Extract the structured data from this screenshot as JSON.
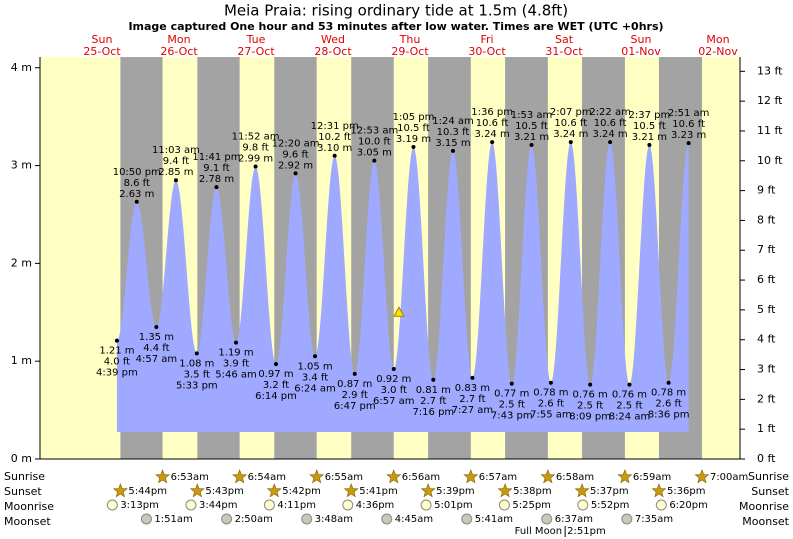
{
  "chart_data": {
    "type": "tide",
    "title": "Meia Praia: rising  ordinary tide at 1.5m (4.8ft)",
    "subtitle": "Image captured One hour and 53 minutes after low water. Times are WET (UTC +0hrs)",
    "current": {
      "height": 1.5
    },
    "ylim": [
      0,
      4.11
    ],
    "yticks": [
      {
        "value": 0,
        "label": "0 m"
      },
      {
        "value": 1,
        "label": "1 m"
      },
      {
        "value": 2,
        "label": "2 m"
      },
      {
        "value": 3,
        "label": "3 m"
      },
      {
        "value": 4,
        "label": "4 m"
      }
    ],
    "y2lim": [
      0,
      13.48
    ],
    "y2ticks": [
      {
        "value": 0,
        "label": "0 ft"
      },
      {
        "value": 1,
        "label": "1 ft"
      },
      {
        "value": 2,
        "label": "2 ft"
      },
      {
        "value": 3,
        "label": "3 ft"
      },
      {
        "value": 4,
        "label": "4 ft"
      },
      {
        "value": 5,
        "label": "5 ft"
      },
      {
        "value": 6,
        "label": "6 ft"
      },
      {
        "value": 7,
        "label": "7 ft"
      },
      {
        "value": 8,
        "label": "8 ft"
      },
      {
        "value": 9,
        "label": "9 ft"
      },
      {
        "value": 10,
        "label": "10 ft"
      },
      {
        "value": 11,
        "label": "11 ft"
      },
      {
        "value": 12,
        "label": "12 ft"
      },
      {
        "value": 13,
        "label": "13 ft"
      }
    ],
    "row_labels": {
      "sunrise": "Sunrise",
      "sunset": "Sunset",
      "moonrise": "Moonrise",
      "moonset": "Moonset"
    },
    "days": [
      {
        "weekday": "Sun",
        "date": "25-Oct",
        "sunrise": null,
        "sunset": "5:44pm",
        "moonrise": "3:13pm",
        "moonset": null,
        "tides": [
          {
            "time": "4:39 pm",
            "m": 1.21,
            "m_label": "1.21 m",
            "ft": 4.0,
            "ft_label": "4.0 ft"
          },
          {
            "time": "10:50 pm",
            "m": 2.63,
            "m_label": "2.63 m",
            "ft": 8.6,
            "ft_label": "8.6 ft"
          }
        ]
      },
      {
        "weekday": "Mon",
        "date": "26-Oct",
        "sunrise": "6:53am",
        "sunset": "5:43pm",
        "moonrise": "3:44pm",
        "moonset": "1:51am",
        "tides": [
          {
            "time": "4:57 am",
            "m": 1.35,
            "m_label": "1.35 m",
            "ft": 4.4,
            "ft_label": "4.4 ft"
          },
          {
            "time": "11:03 am",
            "m": 2.85,
            "m_label": "2.85 m",
            "ft": 9.4,
            "ft_label": "9.4 ft"
          },
          {
            "time": "5:33 pm",
            "m": 1.08,
            "m_label": "1.08 m",
            "ft": 3.5,
            "ft_label": "3.5 ft"
          },
          {
            "time": "11:41 pm",
            "m": 2.78,
            "m_label": "2.78 m",
            "ft": 9.1,
            "ft_label": "9.1 ft"
          }
        ]
      },
      {
        "weekday": "Tue",
        "date": "27-Oct",
        "sunrise": "6:54am",
        "sunset": "5:42pm",
        "moonrise": "4:11pm",
        "moonset": "2:50am",
        "tides": [
          {
            "time": "5:46 am",
            "m": 1.19,
            "m_label": "1.19 m",
            "ft": 3.9,
            "ft_label": "3.9 ft"
          },
          {
            "time": "11:52 am",
            "m": 2.99,
            "m_label": "2.99 m",
            "ft": 9.8,
            "ft_label": "9.8 ft"
          },
          {
            "time": "6:14 pm",
            "m": 0.97,
            "m_label": "0.97 m",
            "ft": 3.2,
            "ft_label": "3.2 ft"
          }
        ]
      },
      {
        "weekday": "Wed",
        "date": "28-Oct",
        "sunrise": "6:55am",
        "sunset": "5:41pm",
        "moonrise": "4:36pm",
        "moonset": "3:48am",
        "tides": [
          {
            "time": "12:20 am",
            "m": 2.92,
            "m_label": "2.92 m",
            "ft": 9.6,
            "ft_label": "9.6 ft"
          },
          {
            "time": "6:24 am",
            "m": 1.05,
            "m_label": "1.05 m",
            "ft": 3.4,
            "ft_label": "3.4 ft"
          },
          {
            "time": "12:31 pm",
            "m": 3.1,
            "m_label": "3.10 m",
            "ft": 10.2,
            "ft_label": "10.2 ft"
          },
          {
            "time": "6:47 pm",
            "m": 0.87,
            "m_label": "0.87 m",
            "ft": 2.9,
            "ft_label": "2.9 ft"
          }
        ]
      },
      {
        "weekday": "Thu",
        "date": "29-Oct",
        "sunrise": "6:56am",
        "sunset": "5:39pm",
        "moonrise": "5:01pm",
        "moonset": "4:45am",
        "tides": [
          {
            "time": "12:53 am",
            "m": 3.05,
            "m_label": "3.05 m",
            "ft": 10.0,
            "ft_label": "10.0 ft"
          },
          {
            "time": "6:57 am",
            "m": 0.92,
            "m_label": "0.92 m",
            "ft": 3.0,
            "ft_label": "3.0 ft"
          },
          {
            "time": "1:05 pm",
            "m": 3.19,
            "m_label": "3.19 m",
            "ft": 10.5,
            "ft_label": "10.5 ft"
          },
          {
            "time": "7:16 pm",
            "m": 0.81,
            "m_label": "0.81 m",
            "ft": 2.7,
            "ft_label": "2.7 ft"
          }
        ]
      },
      {
        "weekday": "Fri",
        "date": "30-Oct",
        "sunrise": "6:57am",
        "sunset": "5:38pm",
        "moonrise": "5:25pm",
        "moonset": "5:41am",
        "tides": [
          {
            "time": "1:24 am",
            "m": 3.15,
            "m_label": "3.15 m",
            "ft": 10.3,
            "ft_label": "10.3 ft"
          },
          {
            "time": "7:27 am",
            "m": 0.83,
            "m_label": "0.83 m",
            "ft": 2.7,
            "ft_label": "2.7 ft"
          },
          {
            "time": "1:36 pm",
            "m": 3.24,
            "m_label": "3.24 m",
            "ft": 10.6,
            "ft_label": "10.6 ft"
          },
          {
            "time": "7:43 pm",
            "m": 0.77,
            "m_label": "0.77 m",
            "ft": 2.5,
            "ft_label": "2.5 ft"
          }
        ]
      },
      {
        "weekday": "Sat",
        "date": "31-Oct",
        "sunrise": "6:58am",
        "sunset": "5:37pm",
        "moonrise": "5:52pm",
        "moonset": "6:37am",
        "full_moon": {
          "label": "Full Moon",
          "time": "2:51pm"
        },
        "tides": [
          {
            "time": "1:53 am",
            "m": 3.21,
            "m_label": "3.21 m",
            "ft": 10.5,
            "ft_label": "10.5 ft"
          },
          {
            "time": "7:55 am",
            "m": 0.78,
            "m_label": "0.78 m",
            "ft": 2.6,
            "ft_label": "2.6 ft"
          },
          {
            "time": "2:07 pm",
            "m": 3.24,
            "m_label": "3.24 m",
            "ft": 10.6,
            "ft_label": "10.6 ft"
          },
          {
            "time": "8:09 pm",
            "m": 0.76,
            "m_label": "0.76 m",
            "ft": 2.5,
            "ft_label": "2.5 ft"
          }
        ]
      },
      {
        "weekday": "Sun",
        "date": "01-Nov",
        "sunrise": "6:59am",
        "sunset": "5:36pm",
        "moonrise": "6:20pm",
        "moonset": "7:35am",
        "tides": [
          {
            "time": "2:22 am",
            "m": 3.24,
            "m_label": "3.24 m",
            "ft": 10.6,
            "ft_label": "10.6 ft"
          },
          {
            "time": "8:24 am",
            "m": 0.76,
            "m_label": "0.76 m",
            "ft": 2.5,
            "ft_label": "2.5 ft"
          },
          {
            "time": "2:37 pm",
            "m": 3.21,
            "m_label": "3.21 m",
            "ft": 10.5,
            "ft_label": "10.5 ft"
          },
          {
            "time": "8:36 pm",
            "m": 0.78,
            "m_label": "0.78 m",
            "ft": 2.6,
            "ft_label": "2.6 ft"
          }
        ]
      },
      {
        "weekday": "Mon",
        "date": "02-Nov",
        "sunrise": "7:00am",
        "sunset": null,
        "moonrise": null,
        "moonset": null,
        "tides": [
          {
            "time": "2:51 am",
            "m": 3.23,
            "m_label": "3.23 m",
            "ft": 10.6,
            "ft_label": "10.6 ft"
          }
        ]
      }
    ]
  }
}
